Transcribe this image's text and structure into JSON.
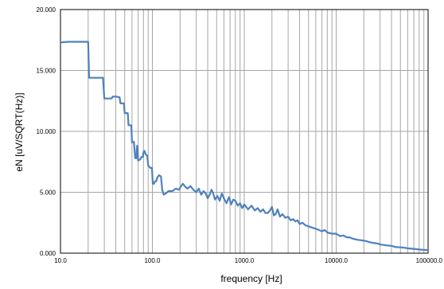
{
  "chart_data": {
    "type": "line",
    "xlabel": "frequency [Hz]",
    "ylabel": "eN [uV/SQRT(Hz)]",
    "xscale": "log",
    "xlim": [
      10,
      100000
    ],
    "ylim": [
      0,
      20
    ],
    "grid": "on",
    "x_tick_labels": [
      "10.0",
      "100.0",
      "1000.0",
      "10000.0",
      "100000.0"
    ],
    "y_tick_labels": [
      "0.000",
      "5.000",
      "10.000",
      "15.000",
      "20.000"
    ],
    "line_color": "#4f81bd",
    "series": [
      {
        "points": [
          [
            10,
            17.3
          ],
          [
            12,
            17.35
          ],
          [
            14,
            17.35
          ],
          [
            16,
            17.35
          ],
          [
            18,
            17.35
          ],
          [
            20,
            17.35
          ],
          [
            20.5,
            14.4
          ],
          [
            25,
            14.4
          ],
          [
            29,
            14.4
          ],
          [
            30,
            12.7
          ],
          [
            34,
            12.7
          ],
          [
            36,
            12.7
          ],
          [
            37,
            12.85
          ],
          [
            41,
            12.85
          ],
          [
            44,
            12.8
          ],
          [
            45,
            12.3
          ],
          [
            49,
            12.3
          ],
          [
            50,
            11.5
          ],
          [
            54,
            11.5
          ],
          [
            55,
            10.5
          ],
          [
            59,
            10.5
          ],
          [
            60,
            9.1
          ],
          [
            63,
            9.15
          ],
          [
            65,
            7.8
          ],
          [
            67,
            7.8
          ],
          [
            68,
            8.8
          ],
          [
            69,
            8.8
          ],
          [
            70,
            7.6
          ],
          [
            74,
            7.7
          ],
          [
            76,
            7.9
          ],
          [
            79,
            7.9
          ],
          [
            80,
            8.3
          ],
          [
            82,
            8.4
          ],
          [
            85,
            8.1
          ],
          [
            88,
            8.0
          ],
          [
            90,
            7.2
          ],
          [
            95,
            7.0
          ],
          [
            99,
            7.0
          ],
          [
            101,
            5.7
          ],
          [
            104,
            5.7
          ],
          [
            107,
            5.9
          ],
          [
            110,
            5.9
          ],
          [
            113,
            6.2
          ],
          [
            118,
            6.4
          ],
          [
            124,
            6.3
          ],
          [
            128,
            5.2
          ],
          [
            133,
            4.8
          ],
          [
            140,
            4.9
          ],
          [
            150,
            5.1
          ],
          [
            165,
            5.1
          ],
          [
            180,
            5.3
          ],
          [
            195,
            5.2
          ],
          [
            205,
            5.5
          ],
          [
            215,
            5.7
          ],
          [
            225,
            5.5
          ],
          [
            240,
            5.3
          ],
          [
            260,
            5.5
          ],
          [
            280,
            5.2
          ],
          [
            300,
            5.0
          ],
          [
            320,
            5.3
          ],
          [
            340,
            4.8
          ],
          [
            360,
            5.1
          ],
          [
            380,
            4.9
          ],
          [
            400,
            4.5
          ],
          [
            420,
            4.8
          ],
          [
            440,
            5.2
          ],
          [
            460,
            4.9
          ],
          [
            480,
            4.4
          ],
          [
            510,
            4.7
          ],
          [
            540,
            4.3
          ],
          [
            570,
            4.9
          ],
          [
            600,
            4.5
          ],
          [
            640,
            4.1
          ],
          [
            680,
            4.6
          ],
          [
            720,
            4.0
          ],
          [
            760,
            4.4
          ],
          [
            800,
            4.3
          ],
          [
            850,
            3.9
          ],
          [
            900,
            4.1
          ],
          [
            950,
            3.7
          ],
          [
            1000,
            4.0
          ],
          [
            1100,
            3.6
          ],
          [
            1200,
            3.9
          ],
          [
            1300,
            3.5
          ],
          [
            1400,
            3.7
          ],
          [
            1500,
            3.4
          ],
          [
            1600,
            3.6
          ],
          [
            1700,
            3.3
          ],
          [
            1800,
            3.3
          ],
          [
            1900,
            3.5
          ],
          [
            2000,
            3.8
          ],
          [
            2100,
            3.1
          ],
          [
            2200,
            3.2
          ],
          [
            2300,
            3.6
          ],
          [
            2450,
            3.0
          ],
          [
            2600,
            3.2
          ],
          [
            2800,
            2.9
          ],
          [
            3000,
            3.0
          ],
          [
            3200,
            2.7
          ],
          [
            3400,
            2.8
          ],
          [
            3600,
            2.6
          ],
          [
            3800,
            2.7
          ],
          [
            4000,
            2.4
          ],
          [
            4300,
            2.5
          ],
          [
            4600,
            2.3
          ],
          [
            5000,
            2.2
          ],
          [
            5500,
            2.1
          ],
          [
            6000,
            2.0
          ],
          [
            6500,
            1.9
          ],
          [
            7000,
            1.8
          ],
          [
            7500,
            1.9
          ],
          [
            8000,
            1.7
          ],
          [
            9000,
            1.6
          ],
          [
            10000,
            1.6
          ],
          [
            11000,
            1.4
          ],
          [
            12000,
            1.45
          ],
          [
            13000,
            1.3
          ],
          [
            14000,
            1.3
          ],
          [
            15000,
            1.2
          ],
          [
            17000,
            1.1
          ],
          [
            19000,
            1.05
          ],
          [
            21000,
            1.0
          ],
          [
            23000,
            0.9
          ],
          [
            25000,
            0.85
          ],
          [
            28000,
            0.8
          ],
          [
            31000,
            0.7
          ],
          [
            35000,
            0.65
          ],
          [
            40000,
            0.6
          ],
          [
            45000,
            0.5
          ],
          [
            50000,
            0.48
          ],
          [
            55000,
            0.45
          ],
          [
            60000,
            0.4
          ],
          [
            70000,
            0.35
          ],
          [
            80000,
            0.3
          ],
          [
            90000,
            0.27
          ],
          [
            100000,
            0.25
          ]
        ]
      }
    ]
  }
}
